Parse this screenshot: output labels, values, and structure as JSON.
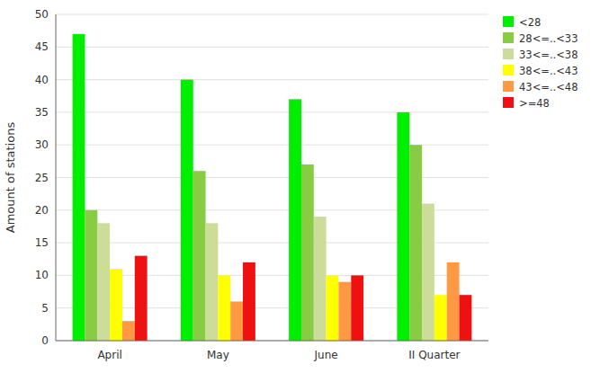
{
  "chart_data": {
    "type": "bar",
    "categories": [
      "April",
      "May",
      "June",
      "II Quarter"
    ],
    "series": [
      {
        "name": "<28",
        "color": "#00EE00",
        "values": [
          47,
          40,
          37,
          35
        ]
      },
      {
        "name": "28<=..<33",
        "color": "#88CC44",
        "values": [
          20,
          26,
          27,
          30
        ]
      },
      {
        "name": "33<=..<38",
        "color": "#CCDD99",
        "values": [
          18,
          18,
          19,
          21
        ]
      },
      {
        "name": "38<=..<43",
        "color": "#FFFF00",
        "values": [
          11,
          10,
          10,
          7
        ]
      },
      {
        "name": "43<=..<48",
        "color": "#FF9944",
        "values": [
          3,
          6,
          9,
          12
        ]
      },
      {
        "name": ">=48",
        "color": "#EE1111",
        "values": [
          13,
          12,
          10,
          7
        ]
      }
    ],
    "ylabel": "Amount of stations",
    "ylim": [
      0,
      50
    ],
    "yticks": [
      0,
      5,
      10,
      15,
      20,
      25,
      30,
      35,
      40,
      45,
      50
    ],
    "grid": true,
    "legend": "upper right"
  }
}
